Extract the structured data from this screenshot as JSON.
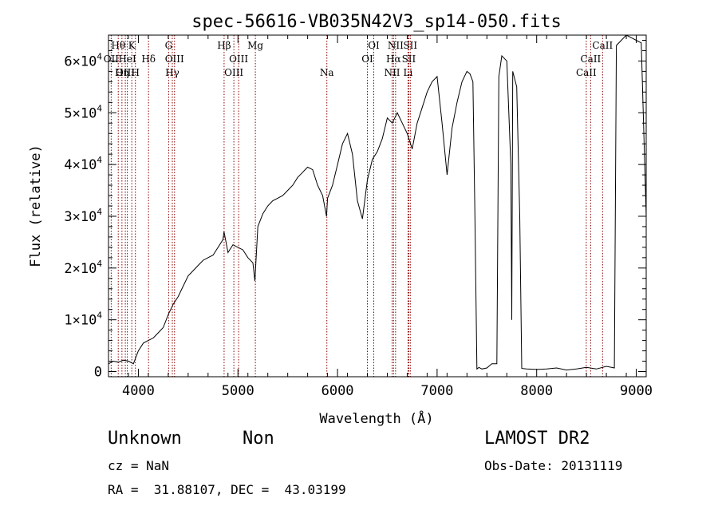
{
  "chart_data": {
    "type": "line",
    "title": "spec-56616-VB035N42V3_sp14-050.fits",
    "xlabel": "Wavelength (Å)",
    "ylabel": "Flux (relative)",
    "xlim": [
      3700,
      9100
    ],
    "ylim": [
      -1000,
      65000
    ],
    "x_ticks": [
      4000,
      5000,
      6000,
      7000,
      8000,
      9000
    ],
    "x_tick_labels": [
      "4000",
      "5000",
      "6000",
      "7000",
      "8000",
      "9000"
    ],
    "y_ticks": [
      0,
      10000,
      20000,
      30000,
      40000,
      50000,
      60000
    ],
    "y_tick_labels": [
      {
        "mantissa": "0",
        "exponent": ""
      },
      {
        "mantissa": "1×10",
        "exponent": "4"
      },
      {
        "mantissa": "2×10",
        "exponent": "4"
      },
      {
        "mantissa": "3×10",
        "exponent": "4"
      },
      {
        "mantissa": "4×10",
        "exponent": "4"
      },
      {
        "mantissa": "5×10",
        "exponent": "4"
      },
      {
        "mantissa": "6×10",
        "exponent": "4"
      }
    ],
    "grid": false,
    "line_color": "#000000",
    "marker_color": "#8b0000",
    "series": [
      {
        "x": [
          3700,
          3750,
          3800,
          3850,
          3900,
          3950,
          4000,
          4050,
          4100,
          4150,
          4200,
          4250,
          4300,
          4350,
          4400,
          4450,
          4500,
          4550,
          4600,
          4650,
          4700,
          4750,
          4800,
          4850,
          4860,
          4900,
          4950,
          5000,
          5050,
          5100,
          5150,
          5170,
          5200,
          5250,
          5300,
          5350,
          5400,
          5450,
          5500,
          5550,
          5600,
          5650,
          5700,
          5750,
          5800,
          5850,
          5890,
          5900,
          5950,
          6000,
          6050,
          6100,
          6150,
          6200,
          6250,
          6300,
          6350,
          6400,
          6450,
          6500,
          6550,
          6600,
          6650,
          6700,
          6750,
          6800,
          6850,
          6900,
          6950,
          7000,
          7050,
          7100,
          7150,
          7200,
          7250,
          7300,
          7330,
          7360,
          7380,
          7400,
          7420,
          7450,
          7500,
          7550,
          7600,
          7620,
          7650,
          7700,
          7740,
          7750,
          7760,
          7800,
          7830,
          7850,
          7900,
          8000,
          8100,
          8200,
          8300,
          8400,
          8500,
          8600,
          8700,
          8780,
          8800,
          8850,
          8900,
          8950,
          9000,
          9050,
          9100
        ],
        "y": [
          1500,
          2000,
          1800,
          2200,
          2000,
          1500,
          4000,
          5500,
          6000,
          6500,
          7500,
          8500,
          11000,
          13000,
          14500,
          16500,
          18500,
          19500,
          20500,
          21500,
          22000,
          22500,
          24000,
          25500,
          27000,
          23000,
          24500,
          24000,
          23500,
          22000,
          21000,
          17500,
          28000,
          30500,
          32000,
          33000,
          33500,
          34000,
          35000,
          36000,
          37500,
          38500,
          39500,
          39000,
          36000,
          34000,
          30000,
          33500,
          36000,
          40000,
          44000,
          46000,
          42000,
          33000,
          29500,
          37000,
          41000,
          42500,
          45000,
          49000,
          48000,
          50000,
          48000,
          46000,
          43000,
          48000,
          51000,
          54000,
          56000,
          57000,
          48000,
          38000,
          47000,
          52000,
          56000,
          58000,
          57500,
          56000,
          30000,
          500,
          800,
          500,
          700,
          1500,
          1500,
          57000,
          61000,
          60000,
          40000,
          10000,
          58000,
          55000,
          30000,
          600,
          500,
          400,
          500,
          700,
          300,
          500,
          800,
          500,
          1000,
          700,
          63000,
          64000,
          65000,
          64500,
          64000,
          63500,
          30000
        ]
      }
    ],
    "line_markers": [
      {
        "wavelength": 3727,
        "label": "OII",
        "row": 2
      },
      {
        "wavelength": 3798,
        "label": "Hθ",
        "row": 1
      },
      {
        "wavelength": 3835,
        "label": "Hη",
        "row": 3
      },
      {
        "wavelength": 3869,
        "label": "OIII",
        "row": 3
      },
      {
        "wavelength": 3889,
        "label": "HeI",
        "row": 2
      },
      {
        "wavelength": 3934,
        "label": "K",
        "row": 1
      },
      {
        "wavelength": 3970,
        "label": "H",
        "row": 3
      },
      {
        "wavelength": 4102,
        "label": "Hδ",
        "row": 2
      },
      {
        "wavelength": 4304,
        "label": "G",
        "row": 1
      },
      {
        "wavelength": 4341,
        "label": "Hγ",
        "row": 3
      },
      {
        "wavelength": 4363,
        "label": "OIII",
        "row": 2
      },
      {
        "wavelength": 4861,
        "label": "Hβ",
        "row": 1
      },
      {
        "wavelength": 4959,
        "label": "OIII",
        "row": 3
      },
      {
        "wavelength": 5007,
        "label": "OIII",
        "row": 2
      },
      {
        "wavelength": 5175,
        "label": "Mg",
        "row": 1
      },
      {
        "wavelength": 5893,
        "label": "Na",
        "row": 3
      },
      {
        "wavelength": 6300,
        "label": "OI",
        "row": 2
      },
      {
        "wavelength": 6364,
        "label": "OI",
        "row": 1
      },
      {
        "wavelength": 6548,
        "label": "NII",
        "row": 3
      },
      {
        "wavelength": 6563,
        "label": "Hα",
        "row": 2
      },
      {
        "wavelength": 6583,
        "label": "NII",
        "row": 1
      },
      {
        "wavelength": 6708,
        "label": "Li",
        "row": 3
      },
      {
        "wavelength": 6716,
        "label": "SII",
        "row": 2
      },
      {
        "wavelength": 6731,
        "label": "SII",
        "row": 1
      },
      {
        "wavelength": 8498,
        "label": "CaII",
        "row": 3
      },
      {
        "wavelength": 8542,
        "label": "CaII",
        "row": 2
      },
      {
        "wavelength": 8662,
        "label": "CaII",
        "row": 1
      }
    ]
  },
  "info": {
    "object_class": "Unknown",
    "object_subclass": "Non",
    "survey": "LAMOST DR2",
    "redshift": "cz = NaN",
    "obs_date": "Obs-Date: 20131119",
    "coords": "RA =  31.88107, DEC =  43.03199"
  }
}
